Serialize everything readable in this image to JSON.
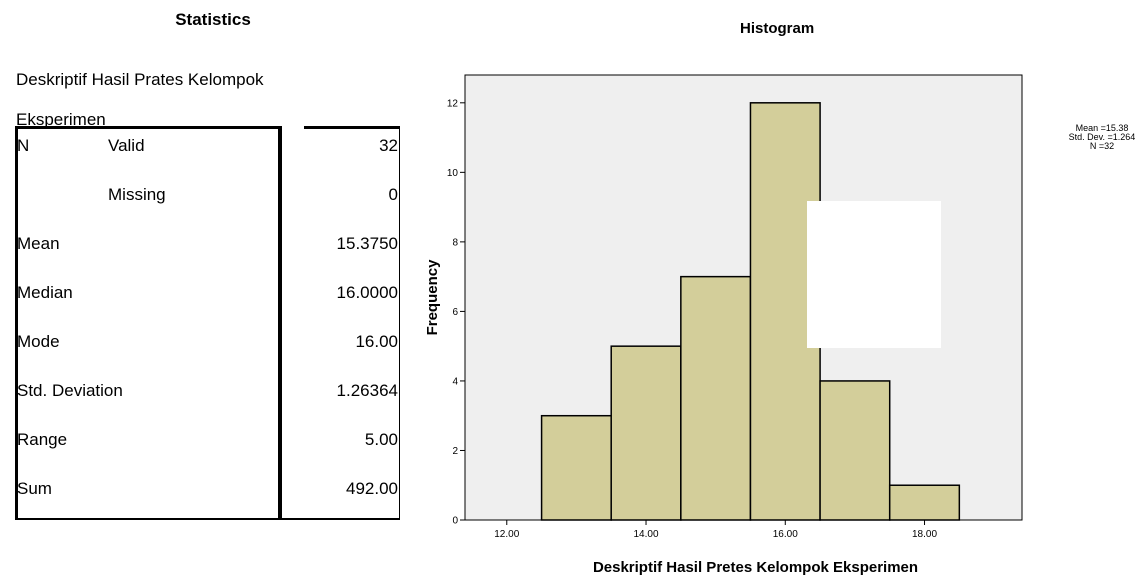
{
  "statistics": {
    "title": "Statistics",
    "caption_line1": "Deskriptif Hasil Prates Kelompok",
    "caption_line2": "Eksperimen",
    "rows": [
      {
        "label": "N",
        "sub": "Valid",
        "value": "32"
      },
      {
        "label": "",
        "sub": "Missing",
        "value": "0"
      },
      {
        "label": "Mean",
        "sub": "",
        "value": "15.3750"
      },
      {
        "label": "Median",
        "sub": "",
        "value": "16.0000"
      },
      {
        "label": "Mode",
        "sub": "",
        "value": "16.00"
      },
      {
        "label": "Std. Deviation",
        "sub": "",
        "value": "1.26364"
      },
      {
        "label": "Range",
        "sub": "",
        "value": "5.00"
      },
      {
        "label": "Sum",
        "sub": "",
        "value": "492.00"
      }
    ]
  },
  "chart_data": {
    "type": "bar",
    "title": "Histogram",
    "xlabel": "Deskriptif Hasil Pretes Kelompok Eksperimen",
    "ylabel": "Frequency",
    "bins": [
      {
        "from": 12.5,
        "to": 13.5,
        "count": 3
      },
      {
        "from": 13.5,
        "to": 14.5,
        "count": 5
      },
      {
        "from": 14.5,
        "to": 15.5,
        "count": 7
      },
      {
        "from": 15.5,
        "to": 16.5,
        "count": 12
      },
      {
        "from": 16.5,
        "to": 17.5,
        "count": 4
      },
      {
        "from": 17.5,
        "to": 18.5,
        "count": 1
      }
    ],
    "xlim": [
      11.4,
      19.4
    ],
    "ylim": [
      0,
      12.8
    ],
    "x_ticks": [
      {
        "value": 12,
        "label": "12.00"
      },
      {
        "value": 14,
        "label": "14.00"
      },
      {
        "value": 16,
        "label": "16.00"
      },
      {
        "value": 18,
        "label": "18.00"
      }
    ],
    "y_ticks": [
      {
        "value": 0,
        "label": "0"
      },
      {
        "value": 2,
        "label": "2"
      },
      {
        "value": 4,
        "label": "4"
      },
      {
        "value": 6,
        "label": "6"
      },
      {
        "value": 8,
        "label": "8"
      },
      {
        "value": 10,
        "label": "10"
      },
      {
        "value": 12,
        "label": "12"
      }
    ],
    "legend": {
      "mean": "Mean =15.38",
      "std_dev": "Std. Dev. =1.264",
      "n": "N =32"
    },
    "colors": {
      "bar_fill": "#d3ce9a",
      "bar_stroke": "#000000",
      "plot_background": "#efefef"
    }
  }
}
